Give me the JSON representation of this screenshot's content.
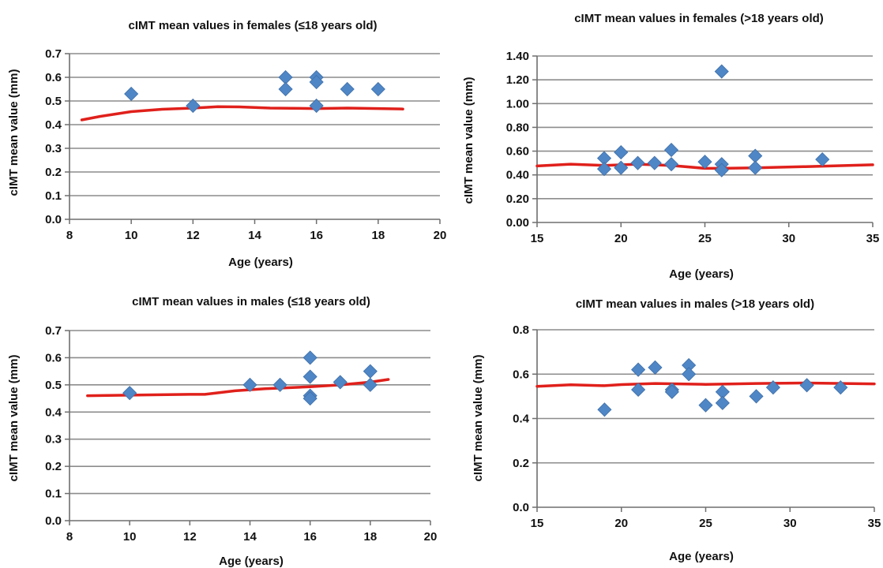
{
  "chart_data": [
    {
      "type": "scatter",
      "title": "cIMT mean values in females (≤18 years old)",
      "xlabel": "Age (years)",
      "ylabel": "cIMT mean value (mm)",
      "xlim": [
        8,
        20
      ],
      "ylim": [
        0,
        0.7
      ],
      "xticks": [
        "8",
        "10",
        "12",
        "14",
        "16",
        "18",
        "20"
      ],
      "yticks": [
        "0.0",
        "0.1",
        "0.2",
        "0.3",
        "0.4",
        "0.5",
        "0.6",
        "0.7"
      ],
      "grid": "horizontal",
      "marker_color": "#4f86c6",
      "trend_color": "#e0201b",
      "points": [
        {
          "x": 10,
          "y": 0.53
        },
        {
          "x": 12,
          "y": 0.48
        },
        {
          "x": 15,
          "y": 0.6
        },
        {
          "x": 15,
          "y": 0.55
        },
        {
          "x": 16,
          "y": 0.6
        },
        {
          "x": 16,
          "y": 0.58
        },
        {
          "x": 16,
          "y": 0.48
        },
        {
          "x": 17,
          "y": 0.55
        },
        {
          "x": 18,
          "y": 0.55
        }
      ],
      "trend": [
        {
          "x": 8.4,
          "y": 0.42
        },
        {
          "x": 9,
          "y": 0.435
        },
        {
          "x": 10,
          "y": 0.455
        },
        {
          "x": 11,
          "y": 0.465
        },
        {
          "x": 12,
          "y": 0.47
        },
        {
          "x": 12.8,
          "y": 0.476
        },
        {
          "x": 13.5,
          "y": 0.475
        },
        {
          "x": 14.5,
          "y": 0.47
        },
        {
          "x": 16,
          "y": 0.468
        },
        {
          "x": 17,
          "y": 0.47
        },
        {
          "x": 18,
          "y": 0.468
        },
        {
          "x": 18.8,
          "y": 0.466
        }
      ]
    },
    {
      "type": "scatter",
      "title": "cIMT mean values in females (>18 years old)",
      "xlabel": "Age (years)",
      "ylabel": "cIMT mean value (mm)",
      "xlim": [
        15,
        35
      ],
      "ylim": [
        0,
        1.4
      ],
      "xticks": [
        "15",
        "20",
        "25",
        "30",
        "35"
      ],
      "yticks": [
        "0.00",
        "0.20",
        "0.40",
        "0.60",
        "0.80",
        "1.00",
        "1.20",
        "1.40"
      ],
      "grid": "horizontal",
      "marker_color": "#4f86c6",
      "trend_color": "#e0201b",
      "points": [
        {
          "x": 19,
          "y": 0.54
        },
        {
          "x": 19,
          "y": 0.45
        },
        {
          "x": 20,
          "y": 0.59
        },
        {
          "x": 20,
          "y": 0.46
        },
        {
          "x": 21,
          "y": 0.5
        },
        {
          "x": 22,
          "y": 0.5
        },
        {
          "x": 23,
          "y": 0.61
        },
        {
          "x": 23,
          "y": 0.49
        },
        {
          "x": 25,
          "y": 0.51
        },
        {
          "x": 26,
          "y": 1.27
        },
        {
          "x": 26,
          "y": 0.49
        },
        {
          "x": 26,
          "y": 0.44
        },
        {
          "x": 28,
          "y": 0.56
        },
        {
          "x": 28,
          "y": 0.46
        },
        {
          "x": 32,
          "y": 0.53
        }
      ],
      "trend": [
        {
          "x": 15,
          "y": 0.475
        },
        {
          "x": 17,
          "y": 0.49
        },
        {
          "x": 19,
          "y": 0.48
        },
        {
          "x": 21,
          "y": 0.49
        },
        {
          "x": 23,
          "y": 0.48
        },
        {
          "x": 25,
          "y": 0.455
        },
        {
          "x": 26,
          "y": 0.455
        },
        {
          "x": 28,
          "y": 0.46
        },
        {
          "x": 31,
          "y": 0.47
        },
        {
          "x": 35,
          "y": 0.485
        }
      ]
    },
    {
      "type": "scatter",
      "title": "cIMT mean values in males (≤18 years old)",
      "xlabel": "Age (years)",
      "ylabel": "cIMT mean value (mm)",
      "xlim": [
        8,
        20
      ],
      "ylim": [
        0,
        0.7
      ],
      "xticks": [
        "8",
        "10",
        "12",
        "14",
        "16",
        "18",
        "20"
      ],
      "yticks": [
        "0.0",
        "0.1",
        "0.2",
        "0.3",
        "0.4",
        "0.5",
        "0.6",
        "0.7"
      ],
      "grid": "horizontal",
      "marker_color": "#4f86c6",
      "trend_color": "#e0201b",
      "points": [
        {
          "x": 10,
          "y": 0.47
        },
        {
          "x": 14,
          "y": 0.5
        },
        {
          "x": 15,
          "y": 0.5
        },
        {
          "x": 16,
          "y": 0.6
        },
        {
          "x": 16,
          "y": 0.53
        },
        {
          "x": 16,
          "y": 0.46
        },
        {
          "x": 16,
          "y": 0.45
        },
        {
          "x": 17,
          "y": 0.51
        },
        {
          "x": 18,
          "y": 0.55
        },
        {
          "x": 18,
          "y": 0.5
        }
      ],
      "trend": [
        {
          "x": 8.6,
          "y": 0.46
        },
        {
          "x": 10,
          "y": 0.462
        },
        {
          "x": 12,
          "y": 0.465
        },
        {
          "x": 12.5,
          "y": 0.465
        },
        {
          "x": 13.5,
          "y": 0.478
        },
        {
          "x": 14.5,
          "y": 0.486
        },
        {
          "x": 16,
          "y": 0.493
        },
        {
          "x": 17,
          "y": 0.5
        },
        {
          "x": 18,
          "y": 0.51
        },
        {
          "x": 18.6,
          "y": 0.52
        }
      ]
    },
    {
      "type": "scatter",
      "title": "cIMT mean values in males (>18 years old)",
      "xlabel": "Age (years)",
      "ylabel": "cIMT mean value (mm)",
      "xlim": [
        15,
        35
      ],
      "ylim": [
        0,
        0.8
      ],
      "xticks": [
        "15",
        "20",
        "25",
        "30",
        "35"
      ],
      "yticks": [
        "0.0",
        "0.2",
        "0.4",
        "0.6",
        "0.8"
      ],
      "grid": "horizontal",
      "marker_color": "#4f86c6",
      "trend_color": "#e0201b",
      "points": [
        {
          "x": 19,
          "y": 0.44
        },
        {
          "x": 21,
          "y": 0.62
        },
        {
          "x": 21,
          "y": 0.53
        },
        {
          "x": 22,
          "y": 0.63
        },
        {
          "x": 23,
          "y": 0.53
        },
        {
          "x": 23,
          "y": 0.52
        },
        {
          "x": 24,
          "y": 0.64
        },
        {
          "x": 24,
          "y": 0.6
        },
        {
          "x": 25,
          "y": 0.46
        },
        {
          "x": 26,
          "y": 0.52
        },
        {
          "x": 26,
          "y": 0.47
        },
        {
          "x": 28,
          "y": 0.5
        },
        {
          "x": 29,
          "y": 0.54
        },
        {
          "x": 31,
          "y": 0.55
        },
        {
          "x": 33,
          "y": 0.54
        }
      ],
      "trend": [
        {
          "x": 15,
          "y": 0.545
        },
        {
          "x": 17,
          "y": 0.552
        },
        {
          "x": 19,
          "y": 0.548
        },
        {
          "x": 20,
          "y": 0.553
        },
        {
          "x": 22,
          "y": 0.558
        },
        {
          "x": 25,
          "y": 0.554
        },
        {
          "x": 28,
          "y": 0.558
        },
        {
          "x": 31,
          "y": 0.56
        },
        {
          "x": 35,
          "y": 0.556
        }
      ]
    }
  ]
}
